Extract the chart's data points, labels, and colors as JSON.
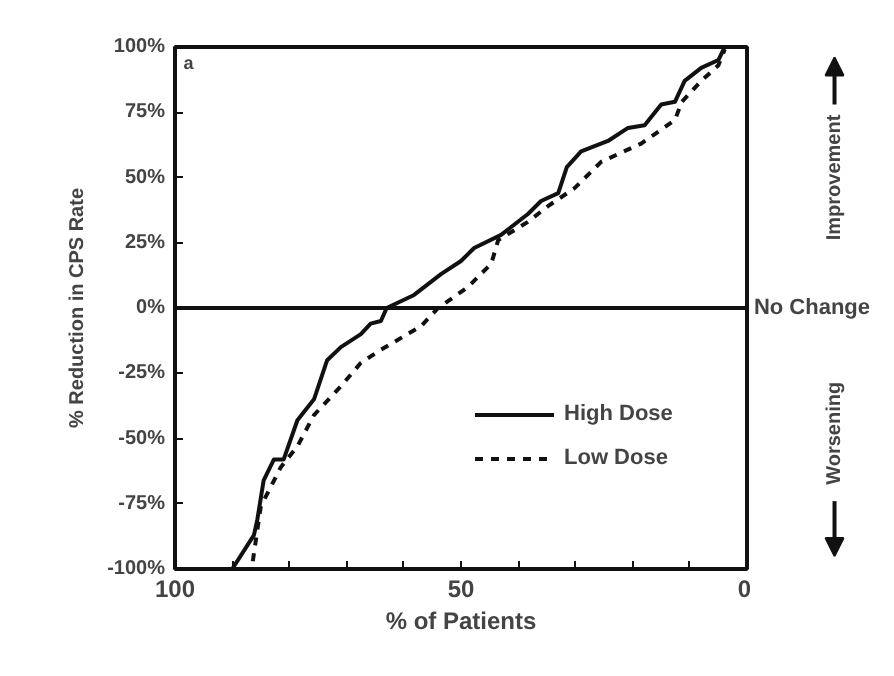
{
  "chart_data": {
    "type": "line",
    "xlabel": "% of Patients",
    "ylabel": "% Reduction in CPS Rate",
    "xlim": [
      100,
      0
    ],
    "ylim": [
      -100,
      100
    ],
    "xticks": [
      100,
      {
        "value": 90,
        "label": null
      },
      {
        "value": 80,
        "label": null
      },
      {
        "value": 70,
        "label": null
      },
      {
        "value": 60,
        "label": null
      },
      50,
      {
        "value": 40,
        "label": null
      },
      {
        "value": 30,
        "label": null
      },
      {
        "value": 20,
        "label": null
      },
      {
        "value": 10,
        "label": null
      },
      0
    ],
    "yticks": [
      {
        "value": -100,
        "label": "-100%"
      },
      {
        "value": -75,
        "label": "-75%"
      },
      {
        "value": -50,
        "label": "-50%"
      },
      {
        "value": -25,
        "label": "-25%"
      },
      {
        "value": 0,
        "label": "0%"
      },
      {
        "value": 25,
        "label": "25%"
      },
      {
        "value": 50,
        "label": "50%"
      },
      {
        "value": 75,
        "label": "75%"
      },
      {
        "value": 100,
        "label": "100%"
      }
    ],
    "grid": false,
    "legend": "bottom right",
    "series": [
      {
        "name": "High Dose",
        "color": "#111111",
        "line_style": "solid",
        "x": [
          90,
          86.2,
          85.6,
          84.5,
          82.7,
          81,
          78.6,
          75.7,
          73.4,
          71,
          67.5,
          65.8,
          64,
          63,
          58.2,
          53.5,
          50,
          47.7,
          43,
          38.3,
          36,
          33,
          31.5,
          29,
          24.3,
          20.8,
          17.9,
          15,
          12.6,
          10.9,
          8,
          5,
          3.9
        ],
        "values": [
          -100,
          -87,
          -81,
          -66,
          -58,
          -58,
          -43,
          -35,
          -20,
          -15,
          -10,
          -6,
          -5,
          0,
          5,
          13,
          18,
          23,
          28,
          36,
          41,
          44,
          54,
          60,
          64,
          69,
          70,
          78,
          79,
          87,
          92,
          95,
          100
        ]
      },
      {
        "name": "Low Dose",
        "color": "#111111",
        "line_style": "dashed",
        "x": [
          86.4,
          85,
          81.5,
          78.6,
          75.7,
          71,
          67.5,
          64,
          57,
          54,
          48.8,
          44.7,
          43.5,
          38.3,
          34.8,
          30.1,
          25.5,
          18.5,
          12.6,
          11.4,
          8,
          5,
          3.9
        ],
        "values": [
          -97,
          -76,
          -61,
          -53,
          -41,
          -30,
          -21,
          -16,
          -7,
          0,
          8,
          17,
          26,
          33,
          39,
          46,
          56,
          63,
          72,
          79,
          87,
          93,
          99
        ]
      }
    ],
    "ref_lines": [
      {
        "axis": "y",
        "value": 0,
        "label": "No Change",
        "color": "#111111",
        "line_style": "solid"
      }
    ],
    "annotations": [
      "a",
      "Improvement",
      "Worsening"
    ]
  }
}
